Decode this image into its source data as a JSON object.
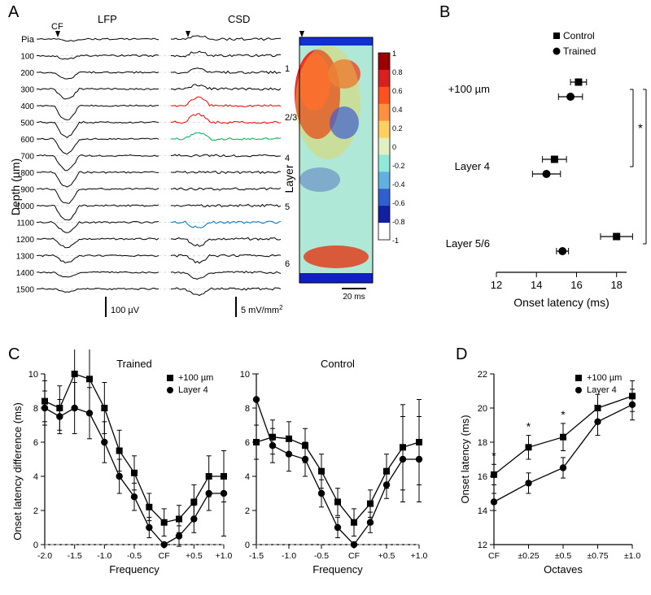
{
  "panelA": {
    "label": "A",
    "titles": {
      "lfp": "LFP",
      "csd": "CSD"
    },
    "cf_label": "CF",
    "pia_label": "Pia",
    "depths": [
      100,
      200,
      300,
      400,
      500,
      600,
      700,
      800,
      900,
      1000,
      1100,
      1200,
      1300,
      1400,
      1500
    ],
    "y_axis_label": "Depth (µm)",
    "layer_axis_label": "Layer",
    "layer_labels": [
      "1",
      "2/3",
      "4",
      "5",
      "6"
    ],
    "layer_positions": [
      40,
      100,
      150,
      210,
      280
    ],
    "scale_lfp": "100 µV",
    "scale_csd": "5 mV/mm",
    "scale_csd_sup": "2",
    "scale_time": "20 ms",
    "csd_colorbar": {
      "min": -1,
      "max": 1,
      "step": 0.2
    },
    "trace_colors": {
      "default": "#000000",
      "red": "#ff0000",
      "green": "#00b050",
      "blue": "#0070c0"
    }
  },
  "panelB": {
    "label": "B",
    "legend": {
      "control": "Control",
      "trained": "Trained"
    },
    "y_categories": [
      "+100 µm",
      "Layer 4",
      "Layer 5/6"
    ],
    "x_label": "Onset latency (ms)",
    "x_ticks": [
      12,
      14,
      16,
      18
    ],
    "sig_marker": "*",
    "data": {
      "control": [
        {
          "x": 16.1,
          "err": 0.4
        },
        {
          "x": 14.9,
          "err": 0.6
        },
        {
          "x": 18.0,
          "err": 0.8
        }
      ],
      "trained": [
        {
          "x": 15.7,
          "err": 0.6
        },
        {
          "x": 14.5,
          "err": 0.7
        },
        {
          "x": 15.3,
          "err": 0.3
        }
      ]
    },
    "colors": {
      "marker": "#000000",
      "axis": "#000000"
    }
  },
  "panelC": {
    "label": "C",
    "titles": {
      "left": "Trained",
      "right": "Control"
    },
    "legend": {
      "plus100": "+100 µm",
      "layer4": "Layer 4"
    },
    "y_label": "Onset latency difference (ms)",
    "x_label": "Frequency",
    "x_ticks_trained": [
      "-2.0",
      "-1.5",
      "-1.0",
      "-0.5",
      "CF",
      "+0.5",
      "+1.0"
    ],
    "x_ticks_control": [
      "-1.5",
      "-1.0",
      "-0.5",
      "CF",
      "+0.5",
      "+1.0"
    ],
    "y_ticks": [
      0,
      2,
      4,
      6,
      8,
      10
    ],
    "trained": {
      "plus100": {
        "y": [
          8.4,
          8.0,
          10.0,
          9.7,
          8.0,
          5.5,
          4.2,
          2.2,
          1.3,
          1.5,
          2.5,
          4.0,
          4.0
        ],
        "err": [
          1.2,
          1.3,
          2.0,
          2.0,
          1.5,
          1.2,
          1.0,
          0.8,
          0.8,
          0.8,
          1.0,
          1.2,
          1.5
        ]
      },
      "layer4": {
        "y": [
          8.0,
          7.5,
          8.0,
          7.7,
          6.0,
          4.0,
          2.8,
          1.0,
          0.0,
          0.5,
          1.5,
          3.0,
          3.0
        ],
        "err": [
          1.0,
          1.0,
          1.5,
          1.5,
          1.2,
          1.0,
          0.8,
          0.6,
          0.0,
          0.6,
          0.8,
          1.0,
          2.5
        ]
      }
    },
    "control": {
      "plus100": {
        "y": [
          6.0,
          6.3,
          6.2,
          5.8,
          4.3,
          2.5,
          1.3,
          2.4,
          4.3,
          5.7,
          6.0
        ],
        "err": [
          1.0,
          1.0,
          1.0,
          1.0,
          1.0,
          0.8,
          0.8,
          0.8,
          1.0,
          2.5,
          2.5
        ]
      },
      "layer4": {
        "y": [
          8.5,
          5.8,
          5.3,
          5.0,
          3.0,
          1.0,
          0.0,
          1.3,
          3.5,
          5.0,
          5.0
        ],
        "err": [
          1.5,
          1.0,
          1.0,
          1.0,
          0.8,
          0.6,
          0.0,
          0.6,
          0.8,
          2.5,
          2.5
        ]
      }
    },
    "colors": {
      "line": "#000000"
    }
  },
  "panelD": {
    "label": "D",
    "y_label": "Onset latency (ms)",
    "x_label": "Octaves",
    "x_ticks": [
      "CF",
      "±0.25",
      "±0.5",
      "±0.75",
      "±1.0"
    ],
    "y_ticks": [
      12,
      14,
      16,
      18,
      20,
      22
    ],
    "sig_marker": "*",
    "data": {
      "plus100": {
        "y": [
          16.1,
          17.7,
          18.3,
          20.0,
          20.7
        ],
        "err": [
          0.6,
          0.7,
          0.8,
          0.8,
          0.9
        ]
      },
      "layer4": {
        "y": [
          14.5,
          15.6,
          16.5,
          19.2,
          20.2
        ],
        "err": [
          0.5,
          0.6,
          0.6,
          0.8,
          0.9
        ]
      }
    },
    "sig_x": [
      0,
      1,
      2
    ],
    "legend": {
      "plus100": "+100 µm",
      "layer4": "Layer 4"
    },
    "colors": {
      "line": "#000000"
    }
  },
  "global_colors": {
    "bg": "#ffffff",
    "text": "#000000"
  }
}
